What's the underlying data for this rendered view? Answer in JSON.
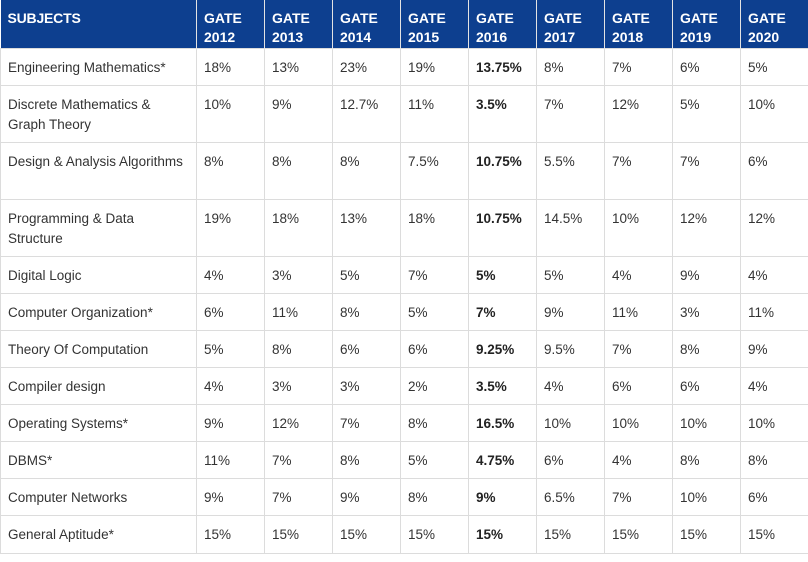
{
  "table": {
    "header": {
      "subject_label": "SUBJECTS",
      "years": [
        [
          "GATE",
          "2012"
        ],
        [
          "GATE",
          "2013"
        ],
        [
          "GATE",
          "2014"
        ],
        [
          "GATE",
          "2015"
        ],
        [
          "GATE",
          "2016"
        ],
        [
          "GATE",
          "2017"
        ],
        [
          "GATE",
          "2018"
        ],
        [
          "GATE",
          "2019"
        ],
        [
          "GATE",
          "2020"
        ]
      ]
    },
    "rows": [
      {
        "subject": "Engineering Mathematics*",
        "values": [
          "18%",
          "13%",
          "23%",
          "19%",
          "13.75%",
          "8%",
          "7%",
          "6%",
          "5%"
        ]
      },
      {
        "subject": "Discrete Mathematics & Graph Theory",
        "values": [
          "10%",
          "9%",
          "12.7%",
          "11%",
          "3.5%",
          "7%",
          "12%",
          "5%",
          "10%"
        ]
      },
      {
        "subject": "Design & Analysis Algorithms",
        "values": [
          "8%",
          "8%",
          "8%",
          "7.5%",
          "10.75%",
          "5.5%",
          "7%",
          "7%",
          "6%"
        ]
      },
      {
        "subject": "Programming & Data Structure",
        "values": [
          "19%",
          "18%",
          "13%",
          "18%",
          "10.75%",
          "14.5%",
          "10%",
          "12%",
          "12%"
        ]
      },
      {
        "subject": "Digital Logic",
        "values": [
          "4%",
          "3%",
          "5%",
          "7%",
          "5%",
          "5%",
          "4%",
          "9%",
          "4%"
        ]
      },
      {
        "subject": "Computer Organization*",
        "values": [
          "6%",
          "11%",
          "8%",
          "5%",
          "7%",
          "9%",
          "11%",
          "3%",
          "11%"
        ]
      },
      {
        "subject": "Theory Of Computation",
        "values": [
          "5%",
          "8%",
          "6%",
          "6%",
          "9.25%",
          "9.5%",
          "7%",
          "8%",
          "9%"
        ]
      },
      {
        "subject": "Compiler design",
        "values": [
          "4%",
          "3%",
          "3%",
          "2%",
          "3.5%",
          "4%",
          "6%",
          "6%",
          "4%"
        ]
      },
      {
        "subject": "Operating Systems*",
        "values": [
          "9%",
          "12%",
          "7%",
          "8%",
          "16.5%",
          "10%",
          "10%",
          "10%",
          "10%"
        ]
      },
      {
        "subject": "DBMS*",
        "values": [
          "11%",
          "7%",
          "8%",
          "5%",
          "4.75%",
          "6%",
          "4%",
          "8%",
          "8%"
        ]
      },
      {
        "subject": "Computer Networks",
        "values": [
          "9%",
          "7%",
          "9%",
          "8%",
          "9%",
          "6.5%",
          "7%",
          "10%",
          "6%"
        ]
      },
      {
        "subject": "General Aptitude*",
        "values": [
          "15%",
          "15%",
          "15%",
          "15%",
          "15%",
          "15%",
          "15%",
          "15%",
          "15%"
        ]
      }
    ],
    "highlight_column_index": 4,
    "colors": {
      "header_bg": "#0d3f8f",
      "header_text": "#ffffff",
      "border": "#dcdcdc",
      "text": "#333333"
    }
  }
}
